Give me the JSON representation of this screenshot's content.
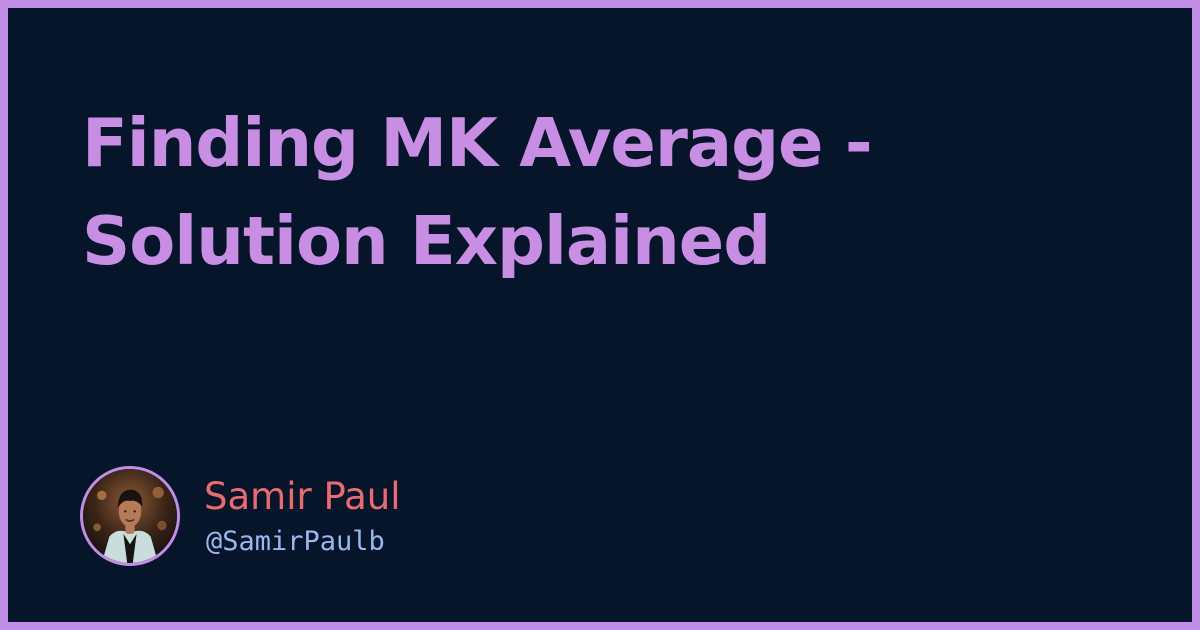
{
  "card": {
    "title": "Finding MK Average - Solution Explained",
    "author": {
      "name": "Samir Paul",
      "handle": "@SamirPaulb",
      "avatar_icon": "author-avatar-icon"
    }
  },
  "colors": {
    "background": "#07152a",
    "border": "#c08ee6",
    "title": "#c78ee4",
    "author_name": "#e86b72",
    "author_handle": "#9bb8ee"
  }
}
